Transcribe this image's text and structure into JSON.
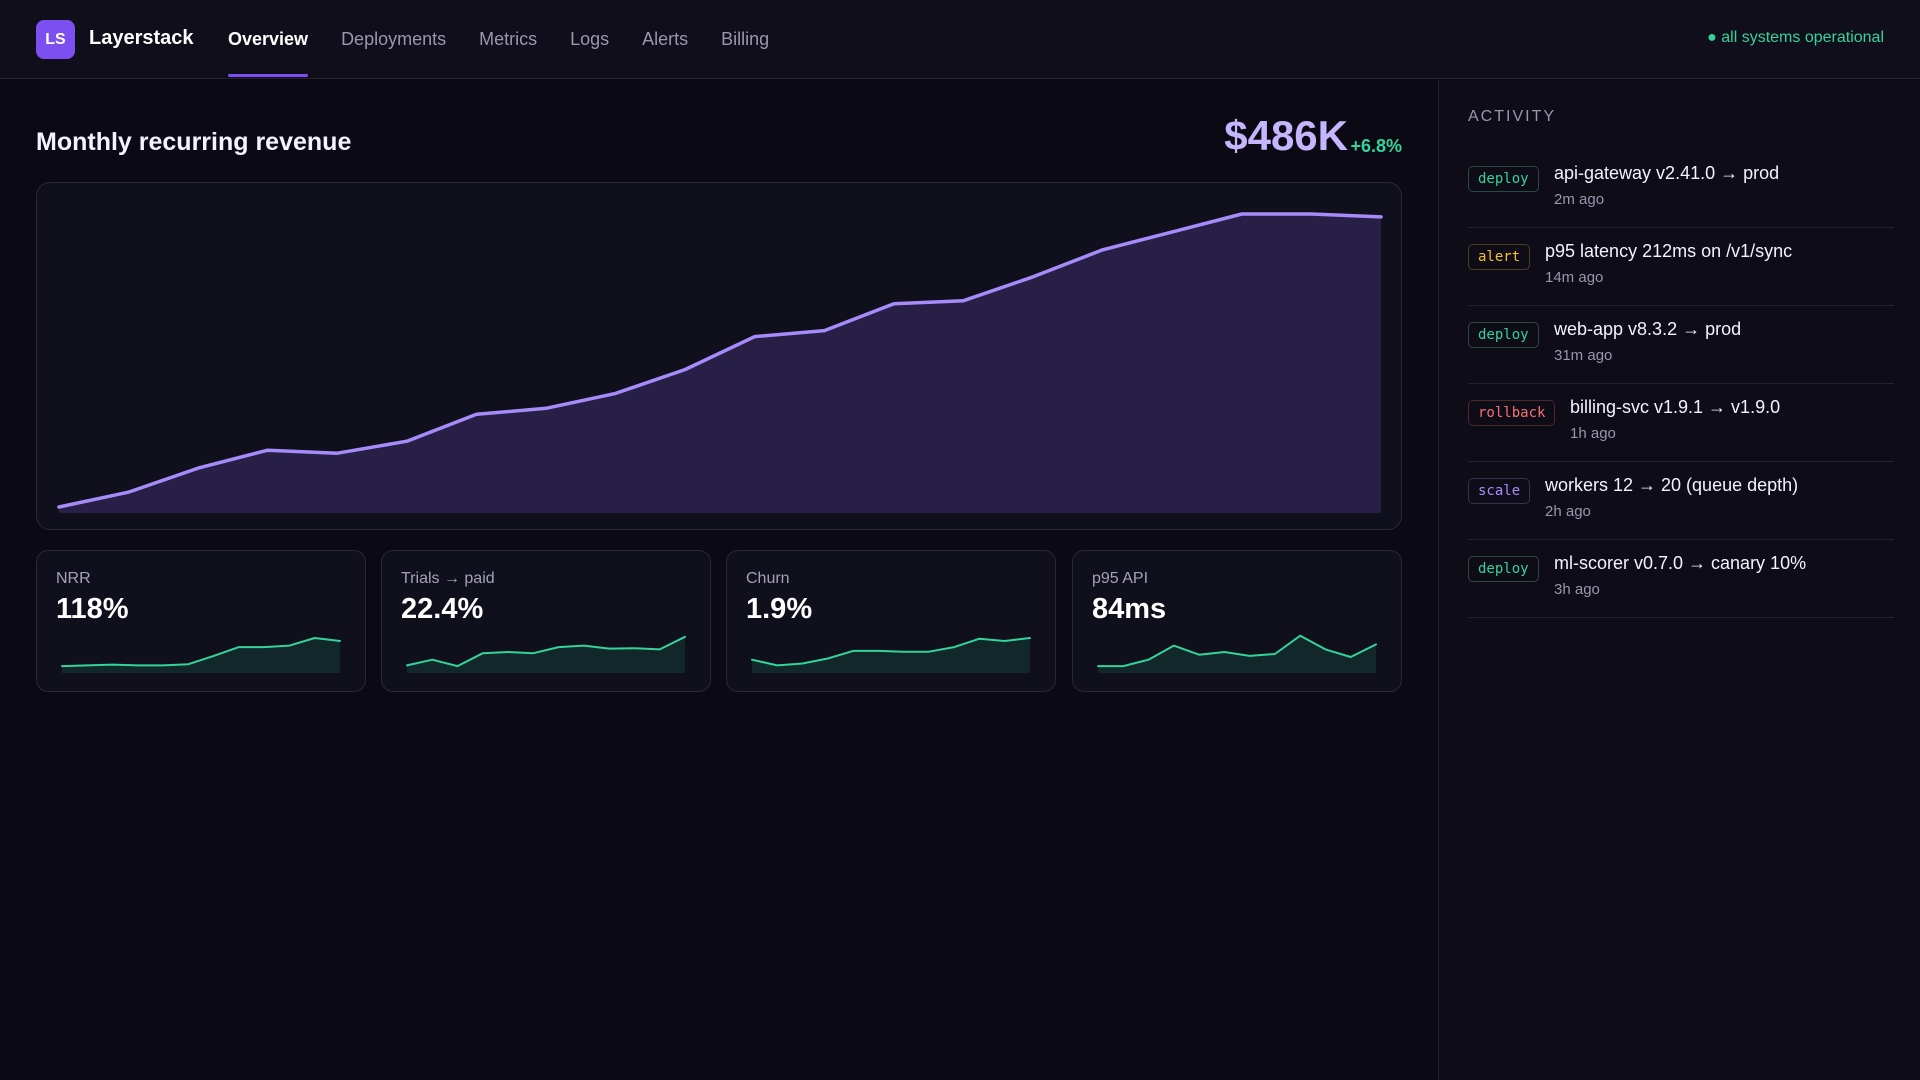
{
  "header": {
    "logo_initials": "LS",
    "brand": "Layerstack",
    "nav": [
      {
        "label": "Overview",
        "active": true
      },
      {
        "label": "Deployments",
        "active": false
      },
      {
        "label": "Metrics",
        "active": false
      },
      {
        "label": "Logs",
        "active": false
      },
      {
        "label": "Alerts",
        "active": false
      },
      {
        "label": "Billing",
        "active": false
      }
    ],
    "status": "● all systems operational"
  },
  "main": {
    "chart_title": "Monthly recurring revenue",
    "chart_value": "$486K",
    "chart_delta": "+6.8%"
  },
  "chart_data": [
    {
      "type": "area",
      "title": "Monthly recurring revenue",
      "x": [
        1,
        2,
        3,
        4,
        5,
        6,
        7,
        8,
        9,
        10,
        11,
        12,
        13,
        14,
        15,
        16,
        17,
        18,
        19,
        20
      ],
      "values": [
        0.02,
        0.07,
        0.15,
        0.21,
        0.2,
        0.24,
        0.33,
        0.35,
        0.4,
        0.48,
        0.59,
        0.61,
        0.7,
        0.71,
        0.79,
        0.88,
        0.94,
        1.0,
        1.0,
        0.99
      ],
      "ylim": [
        0,
        1.05
      ],
      "grid": false,
      "color": "#a78bfa"
    },
    {
      "type": "area",
      "label": "NRR",
      "color": "#34d399",
      "values": [
        0.18,
        0.2,
        0.22,
        0.2,
        0.2,
        0.23,
        0.45,
        0.68,
        0.68,
        0.72,
        0.92,
        0.84
      ]
    },
    {
      "type": "area",
      "label": "Trials → paid",
      "color": "#34d399",
      "values": [
        0.2,
        0.35,
        0.18,
        0.52,
        0.55,
        0.52,
        0.68,
        0.72,
        0.64,
        0.65,
        0.62,
        0.95
      ]
    },
    {
      "type": "area",
      "label": "Churn",
      "color": "#34d399",
      "values": [
        0.35,
        0.2,
        0.25,
        0.38,
        0.58,
        0.58,
        0.56,
        0.56,
        0.68,
        0.9,
        0.84,
        0.92
      ]
    },
    {
      "type": "area",
      "label": "p95 API",
      "color": "#34d399",
      "values": [
        0.18,
        0.18,
        0.35,
        0.72,
        0.48,
        0.55,
        0.45,
        0.5,
        0.98,
        0.62,
        0.42,
        0.75
      ]
    }
  ],
  "kpis": [
    {
      "label": "NRR",
      "value": "118%"
    },
    {
      "label": "Trials → paid",
      "value": "22.4%"
    },
    {
      "label": "Churn",
      "value": "1.9%"
    },
    {
      "label": "p95 API",
      "value": "84ms"
    }
  ],
  "activity": {
    "title": "ACTIVITY",
    "items": [
      {
        "tag": "deploy",
        "kind": "deploy",
        "text": "api-gateway v2.41.0 → prod",
        "time": "2m ago"
      },
      {
        "tag": "alert",
        "kind": "alert",
        "text": "p95 latency 212ms on /v1/sync",
        "time": "14m ago"
      },
      {
        "tag": "deploy",
        "kind": "deploy",
        "text": "web-app v8.3.2 → prod",
        "time": "31m ago"
      },
      {
        "tag": "rollback",
        "kind": "rollback",
        "text": "billing-svc v1.9.1 → v1.9.0",
        "time": "1h ago"
      },
      {
        "tag": "scale",
        "kind": "scale",
        "text": "workers 12 → 20 (queue depth)",
        "time": "2h ago"
      },
      {
        "tag": "deploy",
        "kind": "deploy",
        "text": "ml-scorer v0.7.0 → canary 10%",
        "time": "3h ago"
      }
    ]
  }
}
